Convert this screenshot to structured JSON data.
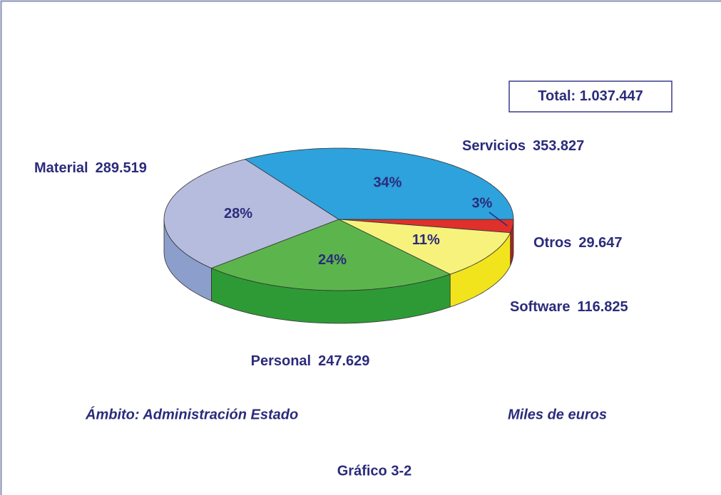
{
  "chart_data": {
    "type": "pie",
    "categories": [
      "Otros",
      "Software",
      "Personal",
      "Material",
      "Servicios"
    ],
    "values": [
      3,
      11,
      24,
      28,
      34
    ],
    "value_labels": [
      "3%",
      "11%",
      "24%",
      "28%",
      "34%"
    ],
    "amounts": [
      29647,
      116825,
      247629,
      289519,
      353827
    ],
    "amount_labels": [
      "29.647",
      "116.825",
      "247.629",
      "289.519",
      "353.827"
    ],
    "colors": [
      "#e0302c",
      "#f6f27c",
      "#5cb54c",
      "#b6bcde",
      "#2ea2dc"
    ],
    "side_colors": [
      "#a82420",
      "#f2e41c",
      "#2e9a36",
      "#8c9ecc",
      "#1d7fb4"
    ],
    "total_caption": "Total:",
    "total": {
      "value": 1037447,
      "label": "1.037.447"
    },
    "scope": "Ámbito: Administración Estado",
    "units": "Miles de euros",
    "figure": "Gráfico 3-2"
  }
}
